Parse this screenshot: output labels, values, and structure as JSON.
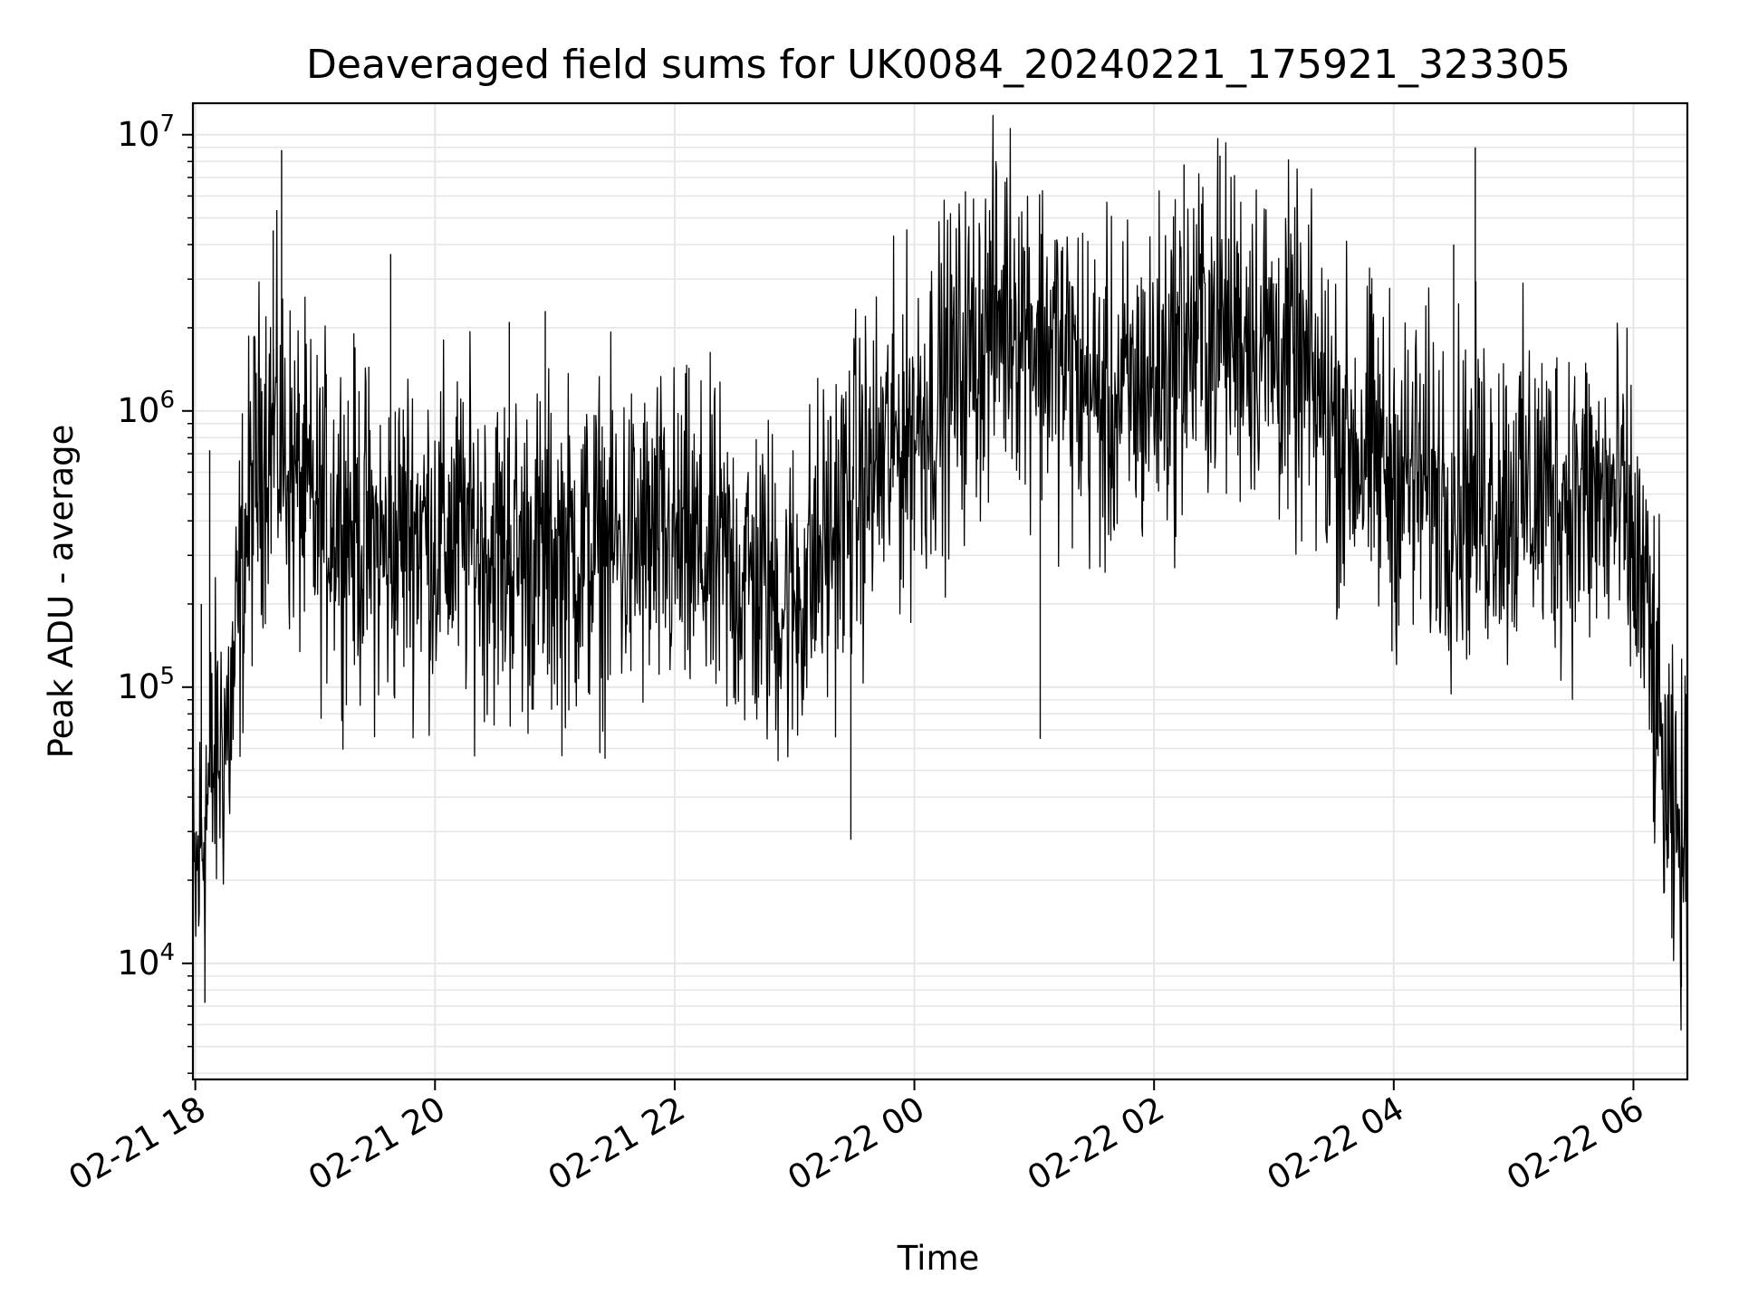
{
  "chart_data": {
    "type": "line",
    "title": "Deaveraged field sums for UK0084_20240221_175921_323305",
    "xlabel": "Time",
    "ylabel": "Peak ADU - average",
    "yscale": "log",
    "ylim": [
      3800,
      13000000
    ],
    "xlim": [
      17.98,
      30.45
    ],
    "grid": true,
    "legend": "none",
    "line_color": "#000000",
    "grid_color": "#e6e6e6",
    "x_ticks": [
      {
        "value": 18,
        "label": "02-21 18"
      },
      {
        "value": 20,
        "label": "02-21 20"
      },
      {
        "value": 22,
        "label": "02-21 22"
      },
      {
        "value": 24,
        "label": "02-22 00"
      },
      {
        "value": 26,
        "label": "02-22 02"
      },
      {
        "value": 28,
        "label": "02-22 04"
      },
      {
        "value": 30,
        "label": "02-22 06"
      }
    ],
    "y_ticks": [
      {
        "value": 10000,
        "base": "10",
        "exp": "4"
      },
      {
        "value": 100000,
        "base": "10",
        "exp": "5"
      },
      {
        "value": 1000000,
        "base": "10",
        "exp": "6"
      },
      {
        "value": 10000000,
        "base": "10",
        "exp": "7"
      }
    ],
    "series": [
      {
        "x": [
          17.98,
          18.1,
          18.2,
          18.3,
          18.4,
          18.5,
          18.6,
          18.7,
          18.8,
          18.9,
          19.0,
          19.2,
          19.4,
          19.6,
          19.8,
          20.0,
          20.3,
          20.6,
          21.0,
          21.5,
          22.0,
          22.5,
          23.0,
          23.2,
          23.5,
          24.0,
          24.4,
          24.8,
          25.2,
          25.6,
          26.0,
          26.4,
          26.8,
          27.2,
          27.6,
          28.0,
          28.5,
          29.0,
          29.5,
          29.9,
          30.1,
          30.2,
          30.3,
          30.45
        ],
        "y": [
          15000,
          40000,
          60000,
          80000,
          300000,
          600000,
          900000,
          800000,
          600000,
          500000,
          400000,
          450000,
          350000,
          300000,
          400000,
          350000,
          350000,
          300000,
          300000,
          320000,
          320000,
          260000,
          200000,
          300000,
          500000,
          900000,
          1500000,
          2500000,
          1600000,
          1000000,
          1300000,
          2000000,
          2000000,
          1400000,
          800000,
          600000,
          500000,
          500000,
          500000,
          450000,
          200000,
          80000,
          30000,
          25000
        ],
        "spikes": [
          {
            "x": 18.72,
            "y": 8800000
          },
          {
            "x": 18.65,
            "y": 4500000
          },
          {
            "x": 19.63,
            "y": 3700000
          },
          {
            "x": 20.62,
            "y": 2100000
          },
          {
            "x": 20.92,
            "y": 2300000
          },
          {
            "x": 23.47,
            "y": 28000
          },
          {
            "x": 25.05,
            "y": 65000
          },
          {
            "x": 26.55,
            "y": 8400000
          },
          {
            "x": 26.25,
            "y": 7800000
          },
          {
            "x": 28.68,
            "y": 9000000
          },
          {
            "x": 28.5,
            "y": 4000000
          },
          {
            "x": 18.08,
            "y": 7200
          },
          {
            "x": 30.4,
            "y": 8200
          },
          {
            "x": 18.05,
            "y": 200000
          },
          {
            "x": 18.12,
            "y": 720000
          }
        ]
      }
    ]
  }
}
